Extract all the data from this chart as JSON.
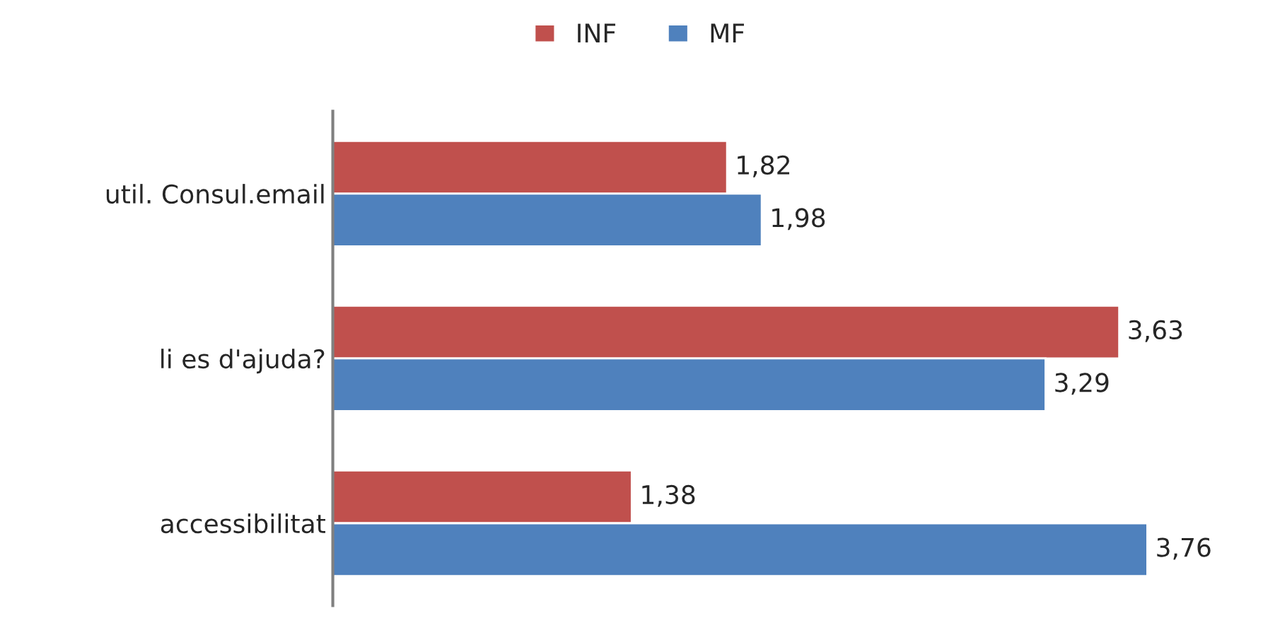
{
  "chart_data": {
    "type": "bar",
    "orientation": "horizontal",
    "categories": [
      "util. Consul.email",
      "li es d'ajuda?",
      "accessibilitat"
    ],
    "series": [
      {
        "name": "INF",
        "color": "#c0504d",
        "values": [
          1.82,
          3.63,
          1.38
        ],
        "value_labels": [
          "1,82",
          "3,63",
          "1,38"
        ]
      },
      {
        "name": "MF",
        "color": "#4f81bd",
        "values": [
          1.98,
          3.29,
          3.76
        ],
        "value_labels": [
          "1,98",
          "3,29",
          "3,76"
        ]
      }
    ],
    "legend": "top",
    "grid": false,
    "tick_labels": "y"
  }
}
